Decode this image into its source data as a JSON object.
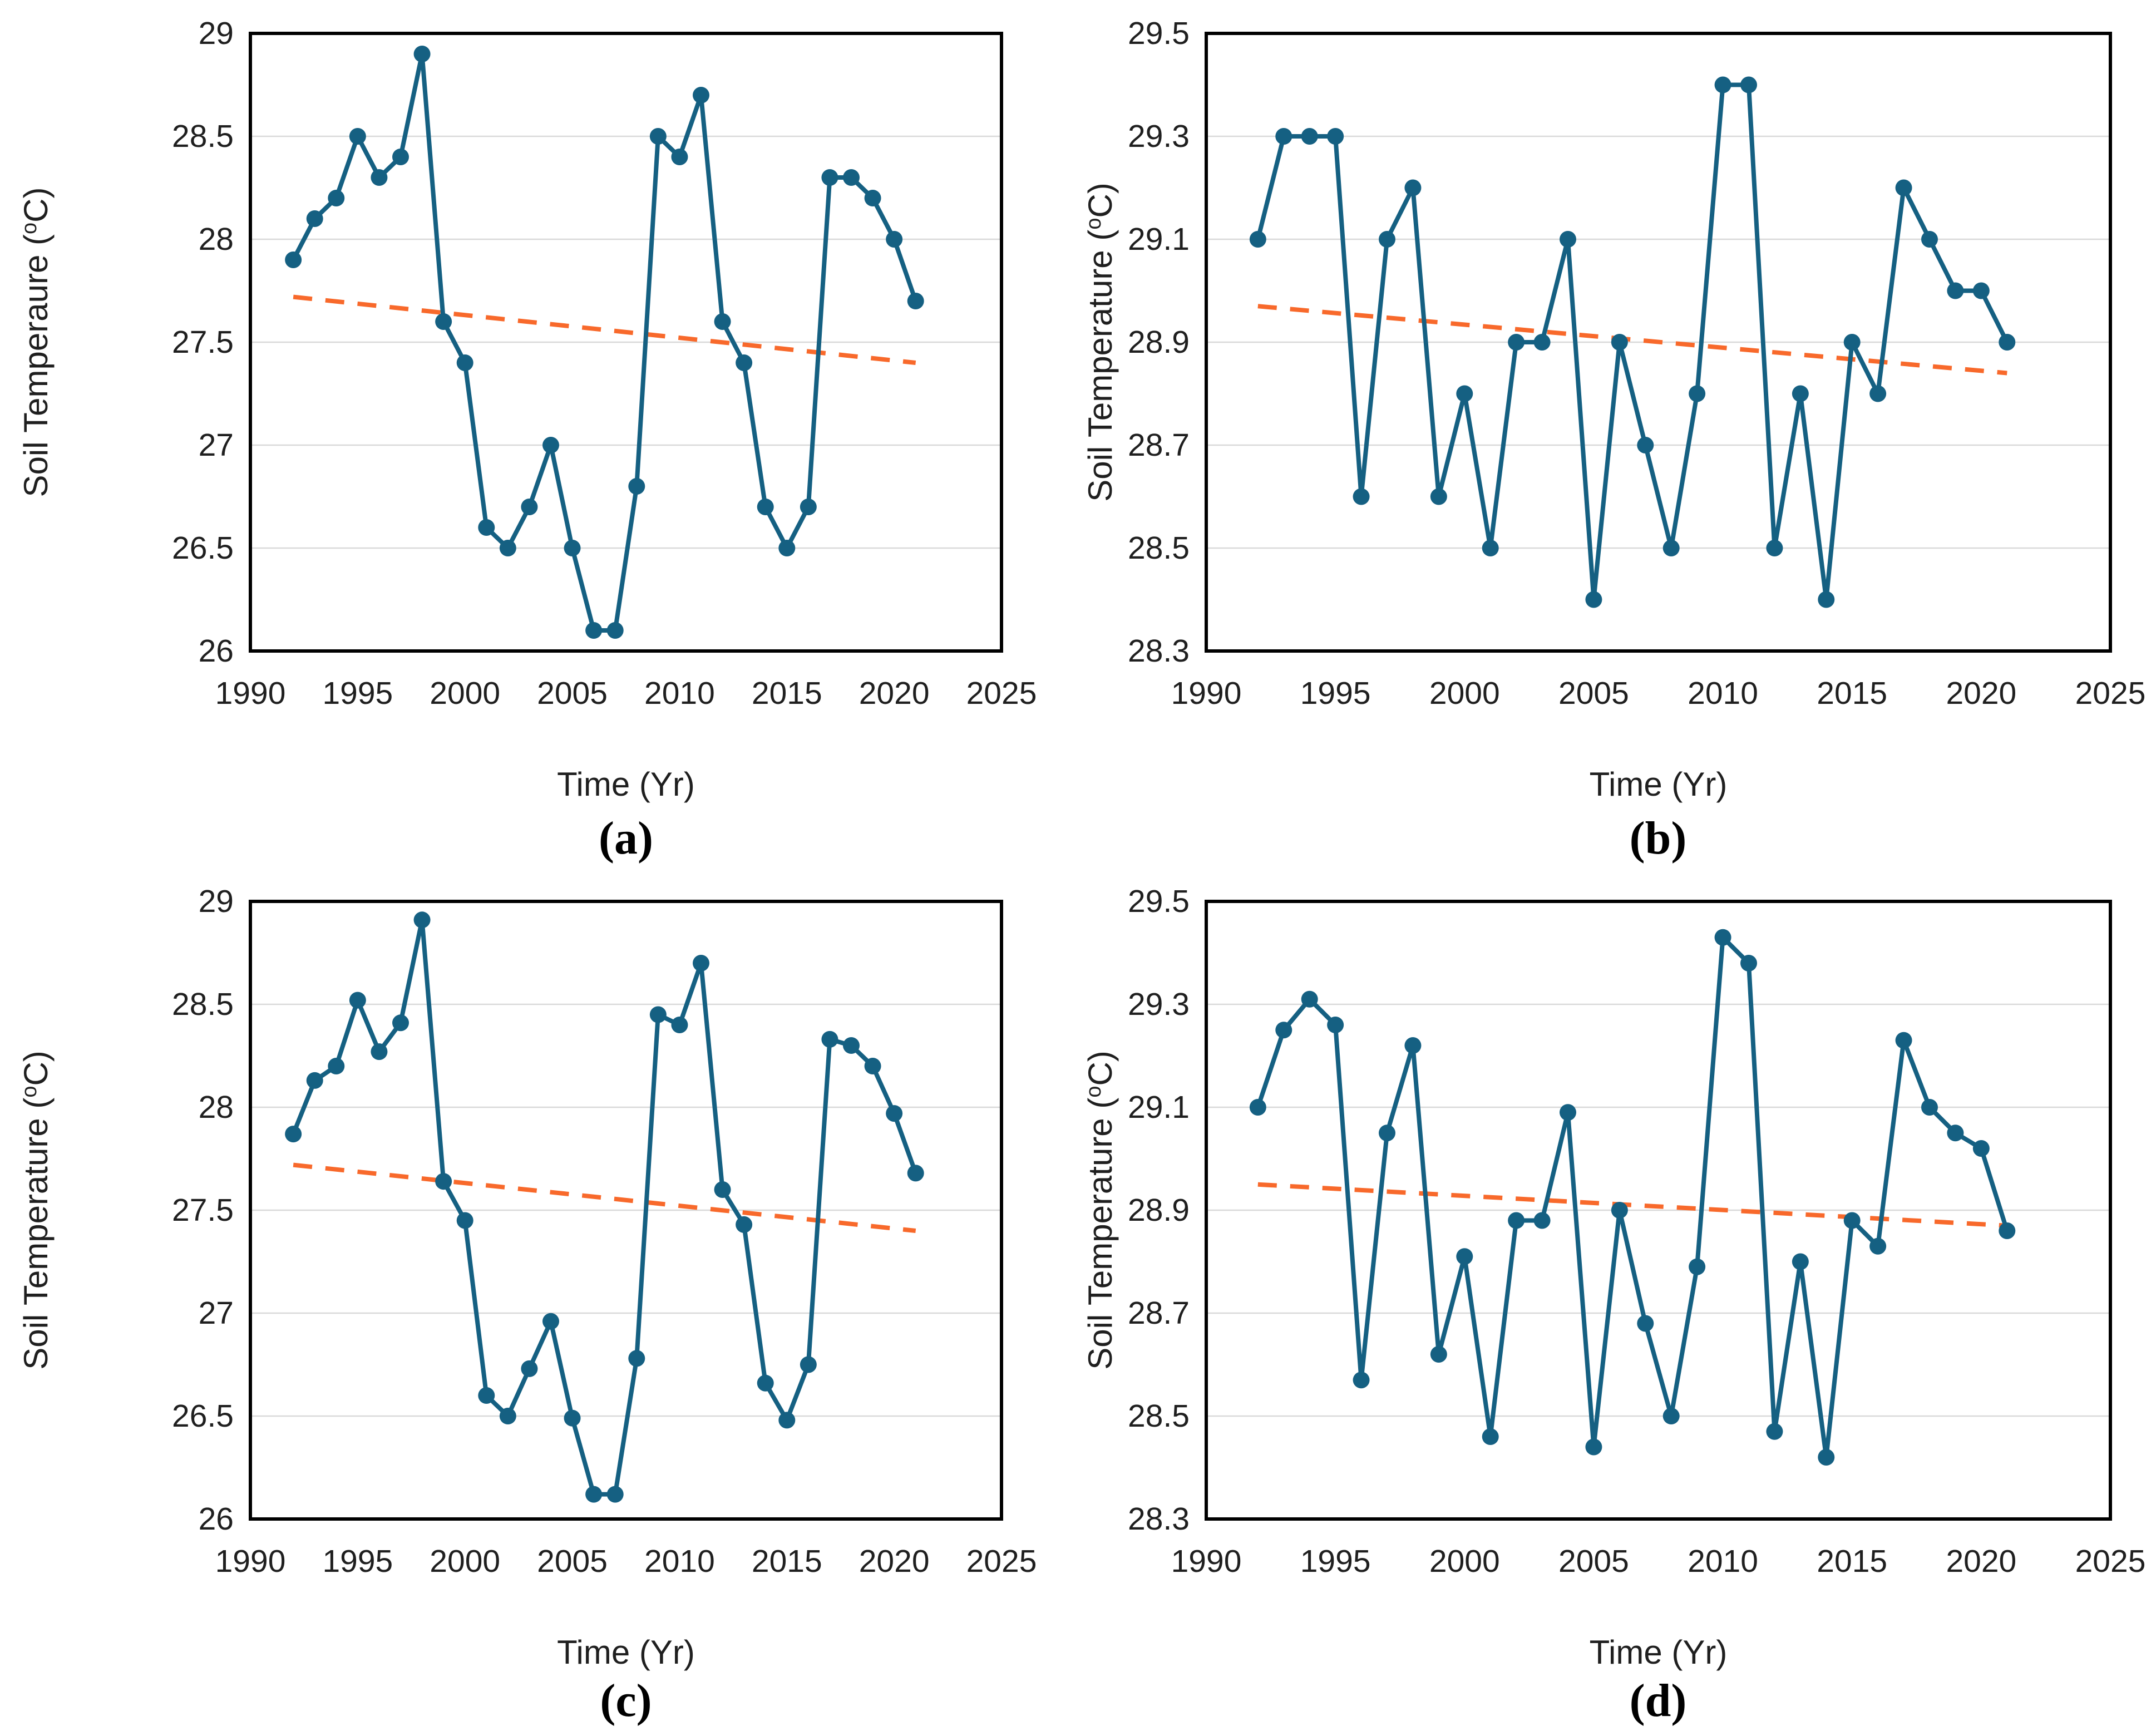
{
  "shared": {
    "background": "#FFFFFF",
    "colors": {
      "series": "#156082",
      "trend": "#F8692B",
      "grid": "#D9D9D9",
      "axis": "#000000",
      "text": "#1F1F1F"
    },
    "xlim": [
      1990,
      2025
    ],
    "x_ticks": [
      {
        "v": 1990,
        "label": "1990"
      },
      {
        "v": 1995,
        "label": "1995"
      },
      {
        "v": 2000,
        "label": "2000"
      },
      {
        "v": 2005,
        "label": "2005"
      },
      {
        "v": 2010,
        "label": "2010"
      },
      {
        "v": 2015,
        "label": "2015"
      },
      {
        "v": 2020,
        "label": "2020"
      },
      {
        "v": 2025,
        "label": "2025"
      }
    ]
  },
  "chart_data": [
    {
      "id": "a",
      "type": "line",
      "caption": "(a)",
      "xlabel": "Time (Yr)",
      "ylabel": {
        "prefix": "Soil Temperaure (",
        "sup": "o",
        "suffix": "C)"
      },
      "ylim": [
        26,
        29
      ],
      "y_ticks": [
        {
          "v": 29,
          "label": "29"
        },
        {
          "v": 28.5,
          "label": "28.5"
        },
        {
          "v": 28,
          "label": "28"
        },
        {
          "v": 27.5,
          "label": "27.5"
        },
        {
          "v": 27,
          "label": "27"
        },
        {
          "v": 26.5,
          "label": "26.5"
        },
        {
          "v": 26,
          "label": "26"
        }
      ],
      "x": [
        1992,
        1993,
        1994,
        1995,
        1996,
        1997,
        1998,
        1999,
        2000,
        2001,
        2002,
        2003,
        2004,
        2005,
        2006,
        2007,
        2008,
        2009,
        2010,
        2011,
        2012,
        2013,
        2014,
        2015,
        2016,
        2017,
        2018,
        2019,
        2020,
        2021
      ],
      "values": [
        27.9,
        28.1,
        28.2,
        28.5,
        28.3,
        28.4,
        28.9,
        27.6,
        27.4,
        26.6,
        26.5,
        26.7,
        27.0,
        26.5,
        26.1,
        26.1,
        26.8,
        28.5,
        28.4,
        28.7,
        27.6,
        27.4,
        26.7,
        26.5,
        26.7,
        28.3,
        28.3,
        28.2,
        28.0,
        27.7
      ],
      "trend": {
        "x": [
          1992,
          2021
        ],
        "y": [
          27.72,
          27.4
        ]
      }
    },
    {
      "id": "b",
      "type": "line",
      "caption": "(b)",
      "xlabel": "Time (Yr)",
      "ylabel": {
        "prefix": "Soil Temperature (",
        "sup": "o",
        "suffix": "C)"
      },
      "ylim": [
        28.3,
        29.5
      ],
      "y_ticks": [
        {
          "v": 29.5,
          "label": "29.5"
        },
        {
          "v": 29.3,
          "label": "29.3"
        },
        {
          "v": 29.1,
          "label": "29.1"
        },
        {
          "v": 28.9,
          "label": "28.9"
        },
        {
          "v": 28.7,
          "label": "28.7"
        },
        {
          "v": 28.5,
          "label": "28.5"
        },
        {
          "v": 28.3,
          "label": "28.3"
        }
      ],
      "x": [
        1992,
        1993,
        1994,
        1995,
        1996,
        1997,
        1998,
        1999,
        2000,
        2001,
        2002,
        2003,
        2004,
        2005,
        2006,
        2007,
        2008,
        2009,
        2010,
        2011,
        2012,
        2013,
        2014,
        2015,
        2016,
        2017,
        2018,
        2019,
        2020,
        2021
      ],
      "values": [
        29.1,
        29.3,
        29.3,
        29.3,
        28.6,
        29.1,
        29.2,
        28.6,
        28.8,
        28.5,
        28.9,
        28.9,
        29.1,
        28.4,
        28.9,
        28.7,
        28.5,
        28.8,
        29.4,
        29.4,
        28.5,
        28.8,
        28.4,
        28.9,
        28.8,
        29.2,
        29.1,
        29.0,
        29.0,
        28.9
      ],
      "trend": {
        "x": [
          1992,
          2021
        ],
        "y": [
          28.97,
          28.84
        ]
      }
    },
    {
      "id": "c",
      "type": "line",
      "caption": "(c)",
      "xlabel": "Time (Yr)",
      "ylabel": {
        "prefix": "Soil Temperature (",
        "sup": "o",
        "suffix": "C)"
      },
      "ylim": [
        26,
        29
      ],
      "y_ticks": [
        {
          "v": 29,
          "label": "29"
        },
        {
          "v": 28.5,
          "label": "28.5"
        },
        {
          "v": 28,
          "label": "28"
        },
        {
          "v": 27.5,
          "label": "27.5"
        },
        {
          "v": 27,
          "label": "27"
        },
        {
          "v": 26.5,
          "label": "26.5"
        },
        {
          "v": 26,
          "label": "26"
        }
      ],
      "x": [
        1992,
        1993,
        1994,
        1995,
        1996,
        1997,
        1998,
        1999,
        2000,
        2001,
        2002,
        2003,
        2004,
        2005,
        2006,
        2007,
        2008,
        2009,
        2010,
        2011,
        2012,
        2013,
        2014,
        2015,
        2016,
        2017,
        2018,
        2019,
        2020,
        2021
      ],
      "values": [
        27.87,
        28.13,
        28.2,
        28.52,
        28.27,
        28.41,
        28.91,
        27.64,
        27.45,
        26.6,
        26.5,
        26.73,
        26.96,
        26.49,
        26.12,
        26.12,
        26.78,
        28.45,
        28.4,
        28.7,
        27.6,
        27.43,
        26.66,
        26.48,
        26.75,
        28.33,
        28.3,
        28.2,
        27.97,
        27.68
      ],
      "trend": {
        "x": [
          1992,
          2021
        ],
        "y": [
          27.72,
          27.4
        ]
      }
    },
    {
      "id": "d",
      "type": "line",
      "caption": "(d)",
      "xlabel": "Time (Yr)",
      "ylabel": {
        "prefix": "Soil Temperature (",
        "sup": "o",
        "suffix": "C)"
      },
      "ylim": [
        28.3,
        29.5
      ],
      "y_ticks": [
        {
          "v": 29.5,
          "label": "29.5"
        },
        {
          "v": 29.3,
          "label": "29.3"
        },
        {
          "v": 29.1,
          "label": "29.1"
        },
        {
          "v": 28.9,
          "label": "28.9"
        },
        {
          "v": 28.7,
          "label": "28.7"
        },
        {
          "v": 28.5,
          "label": "28.5"
        },
        {
          "v": 28.3,
          "label": "28.3"
        }
      ],
      "x": [
        1992,
        1993,
        1994,
        1995,
        1996,
        1997,
        1998,
        1999,
        2000,
        2001,
        2002,
        2003,
        2004,
        2005,
        2006,
        2007,
        2008,
        2009,
        2010,
        2011,
        2012,
        2013,
        2014,
        2015,
        2016,
        2017,
        2018,
        2019,
        2020,
        2021
      ],
      "values": [
        29.1,
        29.25,
        29.31,
        29.26,
        28.57,
        29.05,
        29.22,
        28.62,
        28.81,
        28.46,
        28.88,
        28.88,
        29.09,
        28.44,
        28.9,
        28.68,
        28.5,
        28.79,
        29.43,
        29.38,
        28.47,
        28.8,
        28.42,
        28.88,
        28.83,
        29.23,
        29.1,
        29.05,
        29.02,
        28.86
      ],
      "trend": {
        "x": [
          1992,
          2021
        ],
        "y": [
          28.95,
          28.87
        ]
      }
    }
  ]
}
